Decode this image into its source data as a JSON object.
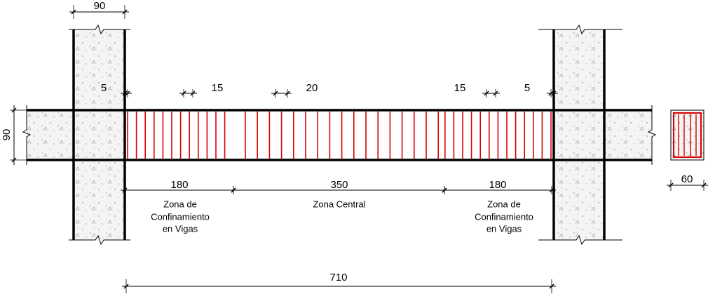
{
  "dimensions": {
    "column_width": "90",
    "beam_height": "90",
    "section_width": "60",
    "end_gap_left": "5",
    "spacing_confinement_left": "15",
    "spacing_central": "20",
    "spacing_confinement_right": "15",
    "end_gap_right": "5",
    "zone_left": "180",
    "zone_central": "350",
    "zone_right": "180",
    "total": "710"
  },
  "zones": {
    "left": [
      "Zona de",
      "Confinamiento",
      "en Vigas"
    ],
    "central": "Zona Central",
    "right": [
      "Zona de",
      "Confinamiento",
      "en Vigas"
    ]
  }
}
